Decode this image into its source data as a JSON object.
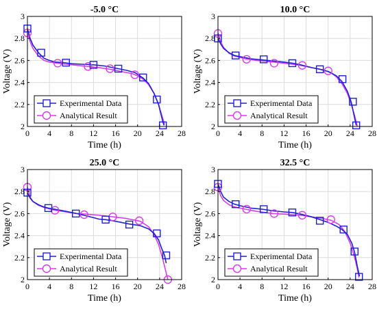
{
  "chart_data": [
    {
      "type": "line",
      "title": "-5.0 °C",
      "xlabel": "Time (h)",
      "ylabel": "Voltage (V)",
      "xlim": [
        0,
        28
      ],
      "ylim": [
        2,
        3
      ],
      "xticks": [
        "0",
        "4",
        "8",
        "12",
        "16",
        "20",
        "24",
        "28"
      ],
      "yticks": [
        "2",
        "2.2",
        "2.4",
        "2.6",
        "2.8",
        "3"
      ],
      "grid": true,
      "legend_position": "bottom-left",
      "series": [
        {
          "name": "Experimental Data",
          "color": "#1f1fd6",
          "marker": "square",
          "x": [
            0,
            0.5,
            1,
            2,
            3,
            4,
            5,
            6.5,
            8,
            10,
            12,
            14,
            16.5,
            18,
            19.5,
            21,
            22,
            23,
            23.8,
            24.3,
            24.6,
            24.8
          ],
          "y": [
            2.89,
            2.8,
            2.74,
            2.67,
            2.62,
            2.6,
            2.585,
            2.58,
            2.57,
            2.565,
            2.56,
            2.55,
            2.525,
            2.51,
            2.49,
            2.44,
            2.39,
            2.3,
            2.2,
            2.1,
            2.04,
            2.01
          ],
          "markers_x": [
            0,
            2.5,
            7,
            12,
            16.5,
            21,
            23.5,
            24.6
          ],
          "markers_y": [
            2.89,
            2.67,
            2.58,
            2.56,
            2.525,
            2.445,
            2.245,
            2.01
          ]
        },
        {
          "name": "Analytical Result",
          "color": "#d43ee8",
          "marker": "circle",
          "x": [
            0,
            0.5,
            1,
            2,
            3,
            4,
            5.5,
            7,
            9,
            11,
            13,
            15,
            17,
            19,
            20,
            21,
            22,
            23,
            23.8,
            24.4,
            24.9
          ],
          "y": [
            2.85,
            2.77,
            2.71,
            2.64,
            2.6,
            2.585,
            2.575,
            2.565,
            2.555,
            2.545,
            2.535,
            2.52,
            2.5,
            2.48,
            2.46,
            2.43,
            2.38,
            2.3,
            2.2,
            2.1,
            2.02
          ],
          "markers_x": [
            0,
            5.5,
            11,
            15,
            19.5
          ],
          "markers_y": [
            2.85,
            2.575,
            2.545,
            2.525,
            2.47
          ]
        }
      ]
    },
    {
      "type": "line",
      "title": "10.0 °C",
      "xlabel": "Time (h)",
      "ylabel": "Voltage (V)",
      "xlim": [
        0,
        28
      ],
      "ylim": [
        2,
        3
      ],
      "xticks": [
        "0",
        "4",
        "8",
        "12",
        "16",
        "20",
        "24",
        "28"
      ],
      "yticks": [
        "2",
        "2.2",
        "2.4",
        "2.6",
        "2.8",
        "3"
      ],
      "grid": true,
      "legend_position": "bottom-left",
      "series": [
        {
          "name": "Experimental Data",
          "color": "#1f1fd6",
          "marker": "square",
          "x": [
            0,
            0.5,
            1,
            2,
            3,
            4.5,
            6,
            8,
            10,
            12,
            13.5,
            15,
            17,
            18.5,
            20,
            21.5,
            22.5,
            23.5,
            24.2,
            24.7,
            25.1
          ],
          "y": [
            2.8,
            2.75,
            2.71,
            2.67,
            2.645,
            2.63,
            2.615,
            2.605,
            2.595,
            2.585,
            2.575,
            2.56,
            2.535,
            2.52,
            2.5,
            2.46,
            2.41,
            2.32,
            2.22,
            2.1,
            2.01
          ],
          "markers_x": [
            0,
            3.2,
            8.3,
            13.5,
            18.5,
            22.6,
            24.5,
            25.1
          ],
          "markers_y": [
            2.8,
            2.645,
            2.61,
            2.575,
            2.52,
            2.43,
            2.225,
            2.01
          ]
        },
        {
          "name": "Analytical Result",
          "color": "#d43ee8",
          "marker": "circle",
          "x": [
            0,
            0.5,
            1,
            2,
            3,
            5,
            7,
            10,
            12,
            15,
            17,
            19,
            20.5,
            21.5,
            22.5,
            23.5,
            24.2,
            24.8,
            25.3
          ],
          "y": [
            2.85,
            2.77,
            2.72,
            2.665,
            2.64,
            2.615,
            2.6,
            2.585,
            2.575,
            2.555,
            2.535,
            2.515,
            2.49,
            2.45,
            2.39,
            2.3,
            2.2,
            2.1,
            2.0
          ],
          "markers_x": [
            0,
            5.2,
            10.2,
            15.3,
            20
          ],
          "markers_y": [
            2.845,
            2.61,
            2.575,
            2.555,
            2.505
          ]
        }
      ]
    },
    {
      "type": "line",
      "title": "25.0 °C",
      "xlabel": "Time (h)",
      "ylabel": "Voltage (V)",
      "xlim": [
        0,
        28
      ],
      "ylim": [
        2,
        3
      ],
      "xticks": [
        "0",
        "4",
        "8",
        "12",
        "16",
        "20",
        "24",
        "28"
      ],
      "yticks": [
        "2",
        "2.2",
        "2.4",
        "2.6",
        "2.8",
        "3"
      ],
      "grid": true,
      "legend_position": "bottom-left",
      "series": [
        {
          "name": "Experimental Data",
          "color": "#1f1fd6",
          "marker": "square",
          "x": [
            0,
            0.5,
            1,
            2,
            3,
            3.8,
            5.5,
            7,
            9,
            11,
            13,
            14.2,
            16,
            18.5,
            20.5,
            22,
            23,
            23.8,
            24.4,
            24.9,
            25.2
          ],
          "y": [
            2.79,
            2.74,
            2.71,
            2.68,
            2.66,
            2.65,
            2.635,
            2.62,
            2.6,
            2.575,
            2.55,
            2.545,
            2.53,
            2.505,
            2.49,
            2.46,
            2.42,
            2.36,
            2.28,
            2.22,
            2.15
          ],
          "markers_x": [
            0,
            3.8,
            8.8,
            14.2,
            18.5,
            23.5,
            25.2
          ],
          "markers_y": [
            2.79,
            2.65,
            2.6,
            2.545,
            2.5,
            2.42,
            2.22
          ]
        },
        {
          "name": "Analytical Result",
          "color": "#d43ee8",
          "marker": "circle",
          "x": [
            0,
            0.5,
            1,
            2,
            3,
            5,
            7,
            9,
            10.5,
            13,
            15.5,
            18,
            20.5,
            22,
            23,
            23.8,
            24.5,
            25,
            25.5
          ],
          "y": [
            2.84,
            2.75,
            2.71,
            2.675,
            2.655,
            2.63,
            2.615,
            2.6,
            2.595,
            2.585,
            2.57,
            2.555,
            2.53,
            2.48,
            2.41,
            2.32,
            2.2,
            2.1,
            2.0
          ],
          "markers_x": [
            0,
            5,
            10.3,
            15.5,
            20.3,
            25.5
          ],
          "markers_y": [
            2.84,
            2.63,
            2.59,
            2.57,
            2.535,
            2.0
          ]
        }
      ]
    },
    {
      "type": "line",
      "title": "32.5 °C",
      "xlabel": "Time (h)",
      "ylabel": "Voltage (V)",
      "xlim": [
        0,
        28
      ],
      "ylim": [
        2,
        3
      ],
      "xticks": [
        "0",
        "4",
        "8",
        "12",
        "16",
        "20",
        "24",
        "28"
      ],
      "yticks": [
        "2",
        "2.2",
        "2.4",
        "2.6",
        "2.8",
        "3"
      ],
      "grid": true,
      "legend_position": "bottom-left",
      "series": [
        {
          "name": "Experimental Data",
          "color": "#1f1fd6",
          "marker": "square",
          "x": [
            0,
            0.5,
            1,
            2,
            3,
            4.5,
            6,
            8,
            10,
            12,
            13.5,
            15,
            17,
            18.5,
            20,
            21.5,
            22.5,
            23.5,
            24.3,
            24.8,
            25.3,
            25.7
          ],
          "y": [
            2.87,
            2.8,
            2.75,
            2.71,
            2.685,
            2.665,
            2.65,
            2.64,
            2.625,
            2.615,
            2.61,
            2.595,
            2.57,
            2.545,
            2.52,
            2.485,
            2.455,
            2.41,
            2.33,
            2.25,
            2.12,
            2.03
          ],
          "markers_x": [
            0,
            3.2,
            8.3,
            13.5,
            18.5,
            22.8,
            24.8,
            25.6
          ],
          "markers_y": [
            2.87,
            2.685,
            2.64,
            2.61,
            2.535,
            2.455,
            2.255,
            2.025
          ]
        },
        {
          "name": "Analytical Result",
          "color": "#d43ee8",
          "marker": "circle",
          "x": [
            0,
            0.5,
            1,
            2,
            3,
            5,
            7,
            10,
            12,
            15,
            17,
            19,
            20.5,
            22,
            23,
            24,
            24.7,
            25.2,
            25.6
          ],
          "y": [
            2.84,
            2.76,
            2.72,
            2.68,
            2.66,
            2.64,
            2.62,
            2.6,
            2.595,
            2.585,
            2.57,
            2.555,
            2.54,
            2.5,
            2.44,
            2.33,
            2.22,
            2.12,
            2.02
          ],
          "markers_x": [
            0,
            5.2,
            10.2,
            15.3,
            20.5
          ],
          "markers_y": [
            2.84,
            2.64,
            2.6,
            2.585,
            2.545
          ]
        }
      ]
    }
  ]
}
